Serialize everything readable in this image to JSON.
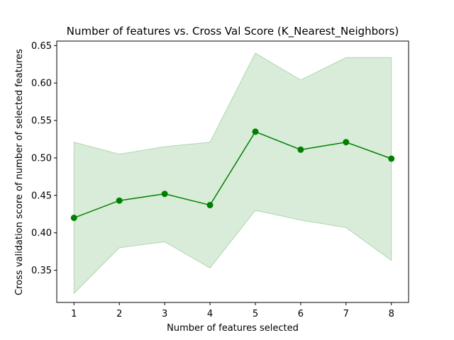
{
  "chart_data": {
    "type": "line",
    "title": "Number of features vs. Cross Val Score (K_Nearest_Neighbors)",
    "xlabel": "Number of features selected",
    "ylabel": "Cross validation score of number of selected features",
    "xlim": [
      0.62,
      8.38
    ],
    "ylim": [
      0.307,
      0.656
    ],
    "xticks": [
      "1",
      "2",
      "3",
      "4",
      "5",
      "6",
      "7",
      "8"
    ],
    "yticks": [
      "0.35",
      "0.40",
      "0.45",
      "0.50",
      "0.55",
      "0.60",
      "0.65"
    ],
    "grid": false,
    "series": [
      {
        "x": [
          1,
          2,
          3,
          4,
          5,
          6,
          7,
          8
        ],
        "values": [
          0.42,
          0.443,
          0.452,
          0.437,
          0.535,
          0.511,
          0.521,
          0.499
        ],
        "color": "#008000",
        "marker": "circle"
      }
    ],
    "band": {
      "x": [
        1,
        2,
        3,
        4,
        5,
        6,
        7,
        8
      ],
      "lower": [
        0.319,
        0.38,
        0.388,
        0.353,
        0.43,
        0.417,
        0.407,
        0.363
      ],
      "upper": [
        0.521,
        0.505,
        0.515,
        0.521,
        0.64,
        0.604,
        0.634,
        0.634
      ],
      "color": "#008000",
      "opacity": 0.15
    }
  }
}
